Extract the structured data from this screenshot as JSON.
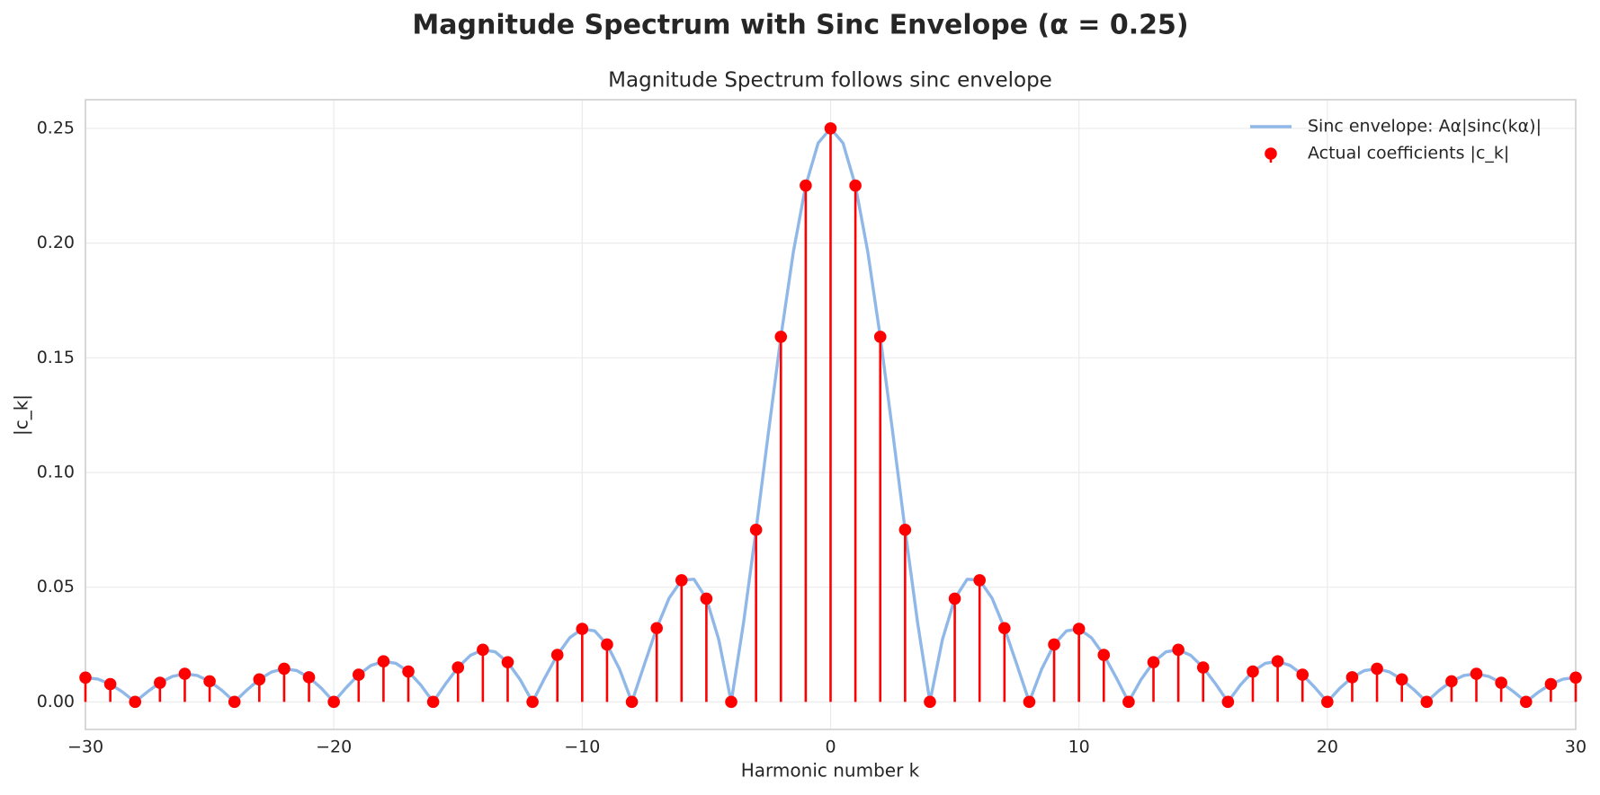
{
  "chart_data": {
    "type": "stem",
    "title": "Magnitude Spectrum with Sinc Envelope (α = 0.25)",
    "subtitle": "Magnitude Spectrum follows sinc envelope",
    "x_label": "Harmonic number k",
    "y_label": "|c_k|",
    "xlim": [
      -30,
      30
    ],
    "xticks": [
      {
        "value": -30,
        "label": "−30"
      },
      {
        "value": -20,
        "label": "−20"
      },
      {
        "value": -10,
        "label": "−10"
      },
      0,
      10,
      20,
      30
    ],
    "ylim": [
      -0.012,
      0.2625
    ],
    "yticks": [
      {
        "value": 0,
        "label": "0.00"
      },
      {
        "value": 0.05,
        "label": "0.05"
      },
      {
        "value": 0.1,
        "label": "0.10"
      },
      {
        "value": 0.15,
        "label": "0.15"
      },
      {
        "value": 0.2,
        "label": "0.20"
      },
      {
        "value": 0.25,
        "label": "0.25"
      }
    ],
    "grid": true,
    "legend": "upper right",
    "series": [
      {
        "name": "Sinc envelope: Aα|sinc(kα)|",
        "type": "line",
        "color": "#8fb8e8",
        "x": [
          -30,
          -29.5,
          -29,
          -28.5,
          -28,
          -27.5,
          -27,
          -26.5,
          -26,
          -25.5,
          -25,
          -24.5,
          -24,
          -23.5,
          -23,
          -22.5,
          -22,
          -21.5,
          -21,
          -20.5,
          -20,
          -19.5,
          -19,
          -18.5,
          -18,
          -17.5,
          -17,
          -16.5,
          -16,
          -15.5,
          -15,
          -14.5,
          -14,
          -13.5,
          -13,
          -12.5,
          -12,
          -11.5,
          -11,
          -10.5,
          -10,
          -9.5,
          -9,
          -8.5,
          -8,
          -7.5,
          -7,
          -6.5,
          -6,
          -5.5,
          -5,
          -4.5,
          -4,
          -3.5,
          -3,
          -2.5,
          -2,
          -1.5,
          -1,
          -0.5,
          0,
          0.5,
          1,
          1.5,
          2,
          2.5,
          3,
          3.5,
          4,
          4.5,
          5,
          5.5,
          6,
          6.5,
          7,
          7.5,
          8,
          8.5,
          9,
          9.5,
          10,
          10.5,
          11,
          11.5,
          12,
          12.5,
          13,
          13.5,
          14,
          14.5,
          15,
          15.5,
          16,
          16.5,
          17,
          17.5,
          18,
          18.5,
          19,
          19.5,
          20,
          20.5,
          21,
          21.5,
          22,
          22.5,
          23,
          23.5,
          24,
          24.5,
          25,
          25.5,
          26,
          26.5,
          27,
          27.5,
          28,
          28.5,
          29,
          29.5,
          30
        ],
        "values": [
          0.01061,
          0.00997,
          0.00776,
          0.00427,
          0,
          0.00443,
          0.00834,
          0.0111,
          0.01224,
          0.01153,
          0.009,
          0.00497,
          0,
          0.00518,
          0.00979,
          0.01307,
          0.01447,
          0.01368,
          0.01072,
          0.00594,
          0,
          0.00625,
          0.01185,
          0.0159,
          0.01768,
          0.0168,
          0.01324,
          0.00738,
          0,
          0.00786,
          0.01501,
          0.02028,
          0.02274,
          0.02178,
          0.01731,
          0.00974,
          0,
          0.01059,
          0.02046,
          0.02801,
          0.03183,
          0.03096,
          0.02501,
          0.01433,
          0,
          0.01624,
          0.03215,
          0.04524,
          0.05305,
          0.05347,
          0.04502,
          0.02707,
          0,
          0.0348,
          0.07503,
          0.11763,
          0.15915,
          0.19605,
          0.22508,
          0.24362,
          0.25,
          0.24362,
          0.22508,
          0.19605,
          0.15915,
          0.11763,
          0.07503,
          0.0348,
          0,
          0.02707,
          0.04502,
          0.05347,
          0.05305,
          0.04524,
          0.03215,
          0.01624,
          0,
          0.01433,
          0.02501,
          0.03096,
          0.03183,
          0.02801,
          0.02046,
          0.01059,
          0,
          0.00974,
          0.01731,
          0.02178,
          0.02274,
          0.02028,
          0.01501,
          0.00786,
          0,
          0.00738,
          0.01324,
          0.0168,
          0.01768,
          0.0159,
          0.01185,
          0.00625,
          0,
          0.00594,
          0.01072,
          0.01368,
          0.01447,
          0.01307,
          0.00979,
          0.00518,
          0,
          0.00497,
          0.009,
          0.01153,
          0.01224,
          0.0111,
          0.00834,
          0.00443,
          0,
          0.00427,
          0.00776,
          0.00997,
          0.01061
        ]
      },
      {
        "name": "Actual coefficients |c_k|",
        "type": "stem",
        "color": "#ff0000",
        "x": [
          -30,
          -29,
          -28,
          -27,
          -26,
          -25,
          -24,
          -23,
          -22,
          -21,
          -20,
          -19,
          -18,
          -17,
          -16,
          -15,
          -14,
          -13,
          -12,
          -11,
          -10,
          -9,
          -8,
          -7,
          -6,
          -5,
          -4,
          -3,
          -2,
          -1,
          0,
          1,
          2,
          3,
          4,
          5,
          6,
          7,
          8,
          9,
          10,
          11,
          12,
          13,
          14,
          15,
          16,
          17,
          18,
          19,
          20,
          21,
          22,
          23,
          24,
          25,
          26,
          27,
          28,
          29,
          30
        ],
        "values": [
          0.01061,
          0.00776,
          0,
          0.00834,
          0.01224,
          0.009,
          0,
          0.00979,
          0.01447,
          0.01072,
          0,
          0.01185,
          0.01768,
          0.01324,
          0,
          0.01501,
          0.02274,
          0.01731,
          0,
          0.02046,
          0.03183,
          0.02501,
          0,
          0.03215,
          0.05305,
          0.04502,
          0,
          0.07503,
          0.15915,
          0.22508,
          0.25,
          0.22508,
          0.15915,
          0.07503,
          0,
          0.04502,
          0.05305,
          0.03215,
          0,
          0.02501,
          0.03183,
          0.02046,
          0,
          0.01731,
          0.02274,
          0.01501,
          0,
          0.01324,
          0.01768,
          0.01185,
          0,
          0.01072,
          0.01447,
          0.00979,
          0,
          0.009,
          0.01224,
          0.00834,
          0,
          0.00776,
          0.01061
        ]
      }
    ]
  }
}
